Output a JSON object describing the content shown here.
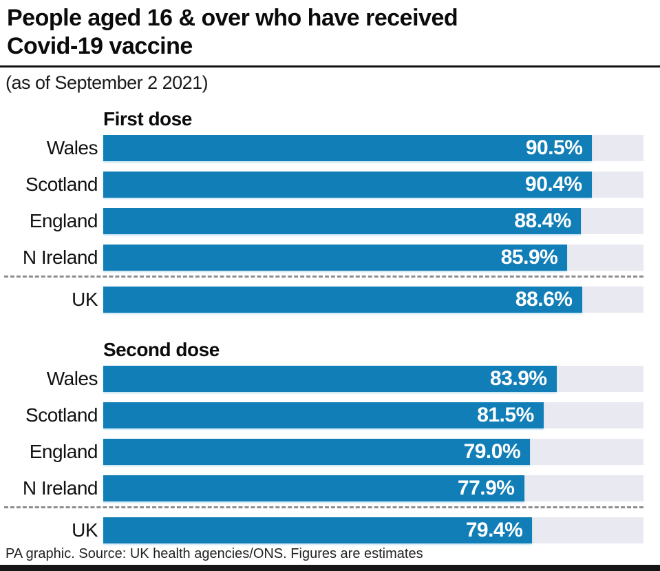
{
  "title": {
    "line1": "People aged 16 & over who have received",
    "line2": "Covid-19 vaccine"
  },
  "subtitle": "(as of September 2 2021)",
  "footer": "PA graphic. Source: UK health agencies/ONS. Figures are estimates",
  "colors": {
    "bar_blue": "#117eb7",
    "track_gray": "#e8e9f1",
    "separator_gray": "#8d8d8d",
    "rule_black": "#111111",
    "bottom_bar_black": "#161616",
    "value_text": "#ffffff",
    "label_text": "#111111"
  },
  "chart_data": [
    {
      "type": "bar",
      "orientation": "horizontal",
      "title": "First dose",
      "categories": [
        "Wales",
        "Scotland",
        "England",
        "N Ireland",
        "UK"
      ],
      "values": [
        90.5,
        90.4,
        88.4,
        85.9,
        88.6
      ],
      "value_labels": [
        "90.5%",
        "90.4%",
        "88.4%",
        "85.9%",
        "88.6%"
      ],
      "xlim": [
        0,
        100
      ],
      "separator_before": "UK",
      "grid": false,
      "legend": "none"
    },
    {
      "type": "bar",
      "orientation": "horizontal",
      "title": "Second dose",
      "categories": [
        "Wales",
        "Scotland",
        "England",
        "N Ireland",
        "UK"
      ],
      "values": [
        83.9,
        81.5,
        79.0,
        77.9,
        79.4
      ],
      "value_labels": [
        "83.9%",
        "81.5%",
        "79.0%",
        "77.9%",
        "79.4%"
      ],
      "xlim": [
        0,
        100
      ],
      "separator_before": "UK",
      "grid": false,
      "legend": "none"
    }
  ]
}
